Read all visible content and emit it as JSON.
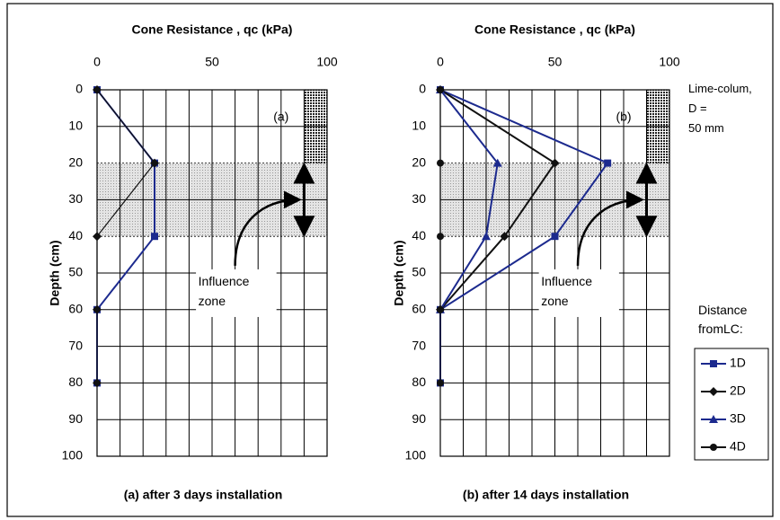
{
  "chart_data": [
    {
      "type": "line",
      "title": "Cone Resistance , qc (kPa)",
      "y_label": "Depth (cm)",
      "caption": "(a) after 3 days installation",
      "panel_label": "(a)",
      "annotation": "Influence zone",
      "y": [
        0,
        20,
        40,
        60,
        80
      ],
      "series": [
        {
          "name": "1D",
          "color": "#1c2a8e",
          "marker": "square",
          "values": [
            0,
            25,
            25,
            0,
            0
          ]
        },
        {
          "name": "2D",
          "color": "#111111",
          "marker": "diamond",
          "values": [
            0,
            25,
            0,
            0,
            0
          ]
        }
      ],
      "xlim": [
        0,
        100
      ],
      "xticks": [
        0,
        50,
        100
      ],
      "xgrid": [
        0,
        10,
        20,
        30,
        40,
        50,
        60,
        70,
        80,
        90,
        100
      ],
      "ylim": [
        0,
        100
      ],
      "yticks": [
        0,
        10,
        20,
        30,
        40,
        50,
        60,
        70,
        80,
        90,
        100
      ],
      "y_inverted": true,
      "grid": true
    },
    {
      "type": "line",
      "title": "Cone Resistance , qc (kPa)",
      "y_label": "Depth (cm)",
      "caption": "(b) after 14 days installation",
      "panel_label": "(b)",
      "annotation": "Influence zone",
      "column_label": "Lime-colum, D = 50 mm",
      "legend_title": "Distance fromLC:",
      "y": [
        0,
        20,
        40,
        60,
        80
      ],
      "series": [
        {
          "name": "1D",
          "color": "#1c2a8e",
          "marker": "square",
          "values": [
            0,
            73,
            50,
            0,
            0
          ]
        },
        {
          "name": "2D",
          "color": "#111111",
          "marker": "diamond",
          "values": [
            0,
            50,
            28,
            0,
            null
          ]
        },
        {
          "name": "3D",
          "color": "#1c2a8e",
          "marker": "triangle",
          "values": [
            0,
            25,
            20,
            0,
            null
          ]
        },
        {
          "name": "4D",
          "color": "#111111",
          "marker": "circle",
          "values": [
            0,
            0,
            0,
            0,
            0
          ]
        }
      ],
      "xlim": [
        0,
        100
      ],
      "xticks": [
        0,
        50,
        100
      ],
      "xgrid": [
        0,
        10,
        20,
        30,
        40,
        50,
        60,
        70,
        80,
        90,
        100
      ],
      "ylim": [
        0,
        100
      ],
      "yticks": [
        0,
        10,
        20,
        30,
        40,
        50,
        60,
        70,
        80,
        90,
        100
      ],
      "y_inverted": true,
      "grid": true,
      "legend": "right"
    }
  ]
}
